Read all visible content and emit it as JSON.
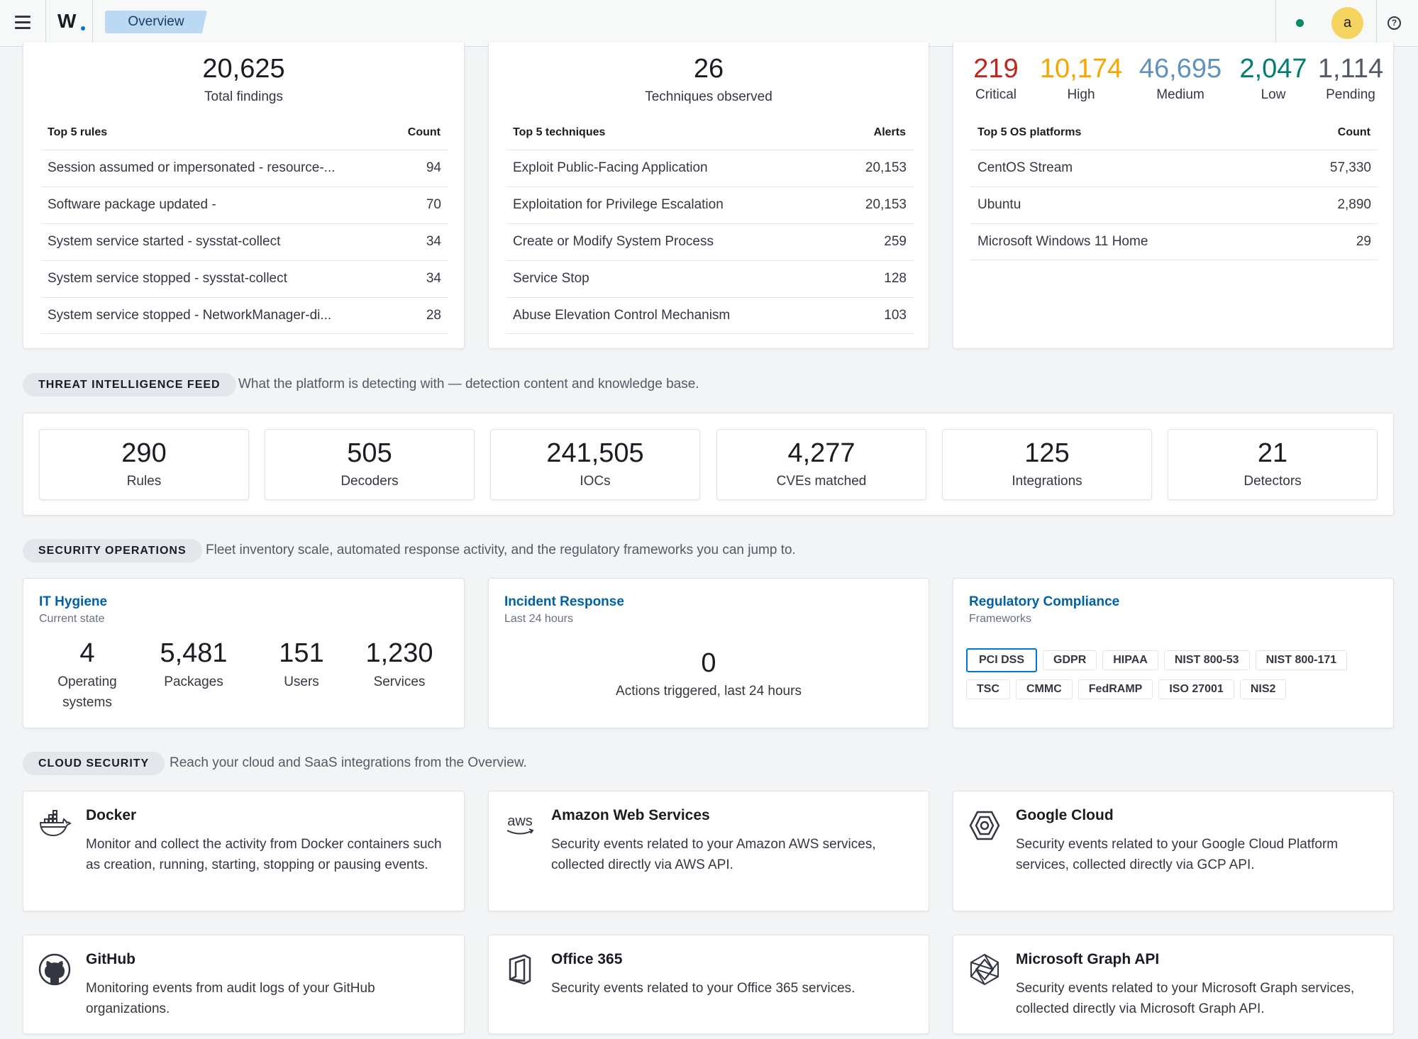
{
  "header": {
    "logo": "W",
    "breadcrumb": "Overview",
    "avatar_initial": "a",
    "help_glyph": "?",
    "status_color": "#00896b"
  },
  "findings": {
    "total_value": "20,625",
    "total_label": "Total findings",
    "head_left": "Top 5 rules",
    "head_right": "Count",
    "rows": [
      {
        "name": "Session assumed or impersonated - resource-...",
        "value": "94"
      },
      {
        "name": "Software package updated -",
        "value": "70"
      },
      {
        "name": "System service started - sysstat-collect",
        "value": "34"
      },
      {
        "name": "System service stopped - sysstat-collect",
        "value": "34"
      },
      {
        "name": "System service stopped - NetworkManager-di...",
        "value": "28"
      }
    ]
  },
  "techniques": {
    "total_value": "26",
    "total_label": "Techniques observed",
    "head_left": "Top 5 techniques",
    "head_right": "Alerts",
    "rows": [
      {
        "name": "Exploit Public-Facing Application",
        "value": "20,153"
      },
      {
        "name": "Exploitation for Privilege Escalation",
        "value": "20,153"
      },
      {
        "name": "Create or Modify System Process",
        "value": "259"
      },
      {
        "name": "Service Stop",
        "value": "128"
      },
      {
        "name": "Abuse Elevation Control Mechanism",
        "value": "103"
      }
    ]
  },
  "vulnerabilities": {
    "severities": [
      {
        "value": "219",
        "label": "Critical",
        "color": "#bd271e"
      },
      {
        "value": "10,174",
        "label": "High",
        "color": "#f5a700"
      },
      {
        "value": "46,695",
        "label": "Medium",
        "color": "#6092c0"
      },
      {
        "value": "2,047",
        "label": "Low",
        "color": "#017d73"
      },
      {
        "value": "1,114",
        "label": "Pending",
        "color": "#535966"
      }
    ],
    "head_left": "Top 5 OS platforms",
    "head_right": "Count",
    "rows": [
      {
        "name": "CentOS Stream",
        "value": "57,330"
      },
      {
        "name": "Ubuntu",
        "value": "2,890"
      },
      {
        "name": "Microsoft Windows 11 Home",
        "value": "29"
      }
    ]
  },
  "threat_intel": {
    "label": "THREAT INTELLIGENCE FEED",
    "description": "What the platform is detecting with — detection content and knowledge base.",
    "stats": [
      {
        "value": "290",
        "label": "Rules"
      },
      {
        "value": "505",
        "label": "Decoders"
      },
      {
        "value": "241,505",
        "label": "IOCs"
      },
      {
        "value": "4,277",
        "label": "CVEs matched"
      },
      {
        "value": "125",
        "label": "Integrations"
      },
      {
        "value": "21",
        "label": "Detectors"
      }
    ]
  },
  "security_ops": {
    "label": "SECURITY OPERATIONS",
    "description": "Fleet inventory scale, automated response activity, and the regulatory frameworks you can jump to.",
    "hygiene": {
      "title": "IT Hygiene",
      "subtitle": "Current state",
      "stats": [
        {
          "value": "4",
          "label": "Operating systems"
        },
        {
          "value": "5,481",
          "label": "Packages"
        },
        {
          "value": "151",
          "label": "Users"
        },
        {
          "value": "1,230",
          "label": "Services"
        }
      ]
    },
    "incident": {
      "title": "Incident Response",
      "subtitle": "Last 24 hours",
      "value": "0",
      "label": "Actions triggered, last 24 hours"
    },
    "compliance": {
      "title": "Regulatory Compliance",
      "subtitle": "Frameworks",
      "frameworks": [
        "PCI DSS",
        "GDPR",
        "HIPAA",
        "NIST 800-53",
        "NIST 800-171",
        "TSC",
        "CMMC",
        "FedRAMP",
        "ISO 27001",
        "NIS2"
      ]
    }
  },
  "cloud": {
    "label": "CLOUD SECURITY",
    "description": "Reach your cloud and SaaS integrations from the Overview.",
    "cards": [
      {
        "icon": "docker-icon",
        "title": "Docker",
        "description": "Monitor and collect the activity from Docker containers such as creation, running, starting, stopping or pausing events."
      },
      {
        "icon": "aws-icon",
        "title": "Amazon Web Services",
        "description": "Security events related to your Amazon AWS services, collected directly via AWS API.",
        "icon_text": "aws"
      },
      {
        "icon": "google-cloud-icon",
        "title": "Google Cloud",
        "description": "Security events related to your Google Cloud Platform services, collected directly via GCP API."
      },
      {
        "icon": "github-icon",
        "title": "GitHub",
        "description": "Monitoring events from audit logs of your GitHub organizations."
      },
      {
        "icon": "office365-icon",
        "title": "Office 365",
        "description": "Security events related to your Office 365 services."
      },
      {
        "icon": "microsoft-graph-icon",
        "title": "Microsoft Graph API",
        "description": "Security events related to your Microsoft Graph services, collected directly via Microsoft Graph API."
      }
    ]
  }
}
